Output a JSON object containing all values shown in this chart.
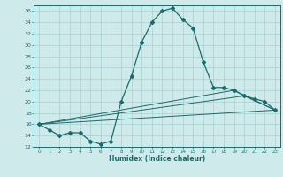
{
  "xlabel": "Humidex (Indice chaleur)",
  "background_color": "#ceeaea",
  "grid_color": "#a8d0d0",
  "line_color": "#1a6b6b",
  "xlim": [
    -0.5,
    23.5
  ],
  "ylim": [
    12,
    37
  ],
  "yticks": [
    12,
    14,
    16,
    18,
    20,
    22,
    24,
    26,
    28,
    30,
    32,
    34,
    36
  ],
  "xticks": [
    0,
    1,
    2,
    3,
    4,
    5,
    6,
    7,
    8,
    9,
    10,
    11,
    12,
    13,
    14,
    15,
    16,
    17,
    18,
    19,
    20,
    21,
    22,
    23
  ],
  "line1_x": [
    0,
    1,
    2,
    3,
    4,
    5,
    6,
    7,
    8,
    9,
    10,
    11,
    12,
    13,
    14,
    15,
    16,
    17,
    18,
    19,
    20,
    21,
    22,
    23
  ],
  "line1_y": [
    16.0,
    15.0,
    14.0,
    14.5,
    14.5,
    13.0,
    12.5,
    13.0,
    20.0,
    24.5,
    30.5,
    34.0,
    36.0,
    36.5,
    34.5,
    33.0,
    27.0,
    22.5,
    22.5,
    22.0,
    21.0,
    20.5,
    20.0,
    18.5
  ],
  "line2_x": [
    0,
    23
  ],
  "line2_y": [
    16.0,
    18.5
  ],
  "line3_x": [
    0,
    19,
    23
  ],
  "line3_y": [
    16.0,
    22.0,
    18.5
  ],
  "line4_x": [
    0,
    20,
    23
  ],
  "line4_y": [
    16.0,
    21.0,
    18.5
  ]
}
